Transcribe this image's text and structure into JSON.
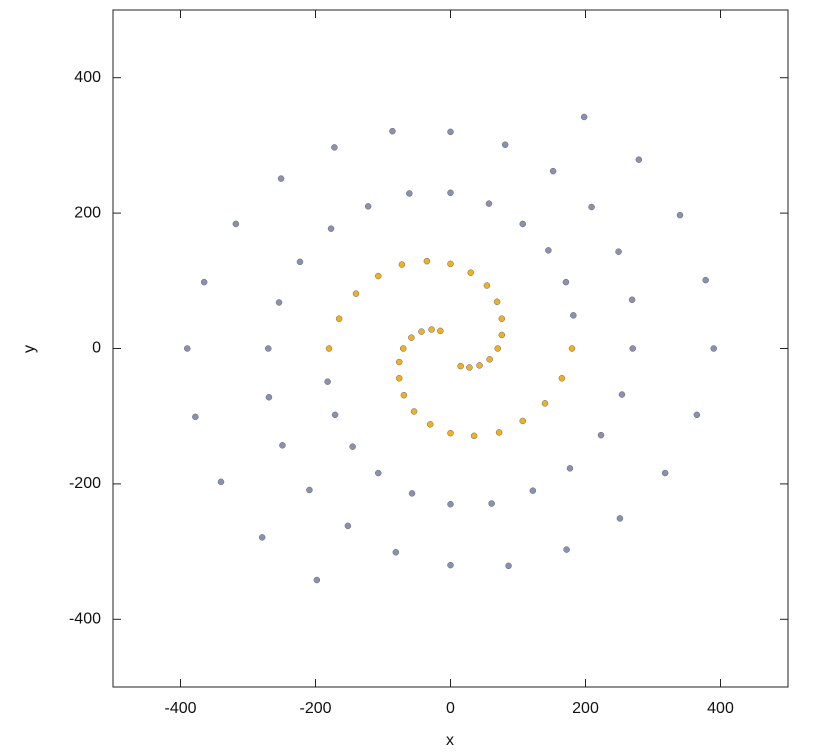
{
  "chart_data": {
    "type": "scatter",
    "xlabel": "x",
    "ylabel": "y",
    "xlim": [
      -500,
      500
    ],
    "ylim": [
      -500,
      500
    ],
    "xticks": [
      -400,
      -200,
      0,
      200,
      400
    ],
    "yticks": [
      -400,
      -200,
      0,
      200,
      400
    ],
    "series": [
      {
        "color": "#8890b4",
        "x": [
          198,
          279,
          340,
          378,
          390,
          365,
          318,
          251,
          172,
          86,
          0,
          -81,
          -152,
          -209,
          -249,
          -269,
          -270,
          -254,
          -223,
          -177,
          -122,
          -61,
          0,
          57,
          107,
          145,
          171,
          182,
          -198,
          -279,
          -340,
          -378,
          -390,
          -365,
          -318,
          -251,
          -172,
          -86,
          0,
          81,
          152,
          209,
          249,
          269,
          270,
          254,
          223,
          177,
          122,
          61,
          0,
          -57,
          -107,
          -145,
          -171,
          -182
        ],
        "y": [
          342,
          279,
          197,
          101,
          0,
          -98,
          -184,
          -251,
          -297,
          -321,
          -320,
          -301,
          -262,
          -209,
          -143,
          -72,
          0,
          68,
          128,
          177,
          210,
          229,
          230,
          214,
          184,
          145,
          98,
          49,
          -342,
          -279,
          -197,
          -101,
          0,
          98,
          184,
          251,
          297,
          321,
          320,
          301,
          262,
          209,
          143,
          72,
          0,
          -68,
          -128,
          -177,
          -210,
          -229,
          -230,
          -214,
          -184,
          -145,
          -98,
          -49
        ]
      },
      {
        "color": "#f0b020",
        "x": [
          180,
          165,
          140,
          107,
          72,
          35,
          0,
          -30,
          -54,
          -69,
          -76,
          -76,
          -70,
          -58,
          -43,
          -28,
          -15,
          -180,
          -165,
          -140,
          -107,
          -72,
          -35,
          0,
          30,
          54,
          69,
          76,
          76,
          70,
          58,
          43,
          28,
          15
        ],
        "y": [
          0,
          -44,
          -81,
          -107,
          -124,
          -129,
          -125,
          -112,
          -93,
          -69,
          -44,
          -20,
          0,
          16,
          25,
          28,
          26,
          0,
          44,
          81,
          107,
          124,
          129,
          125,
          112,
          93,
          69,
          44,
          20,
          0,
          -16,
          -25,
          -28,
          -26
        ]
      }
    ]
  }
}
